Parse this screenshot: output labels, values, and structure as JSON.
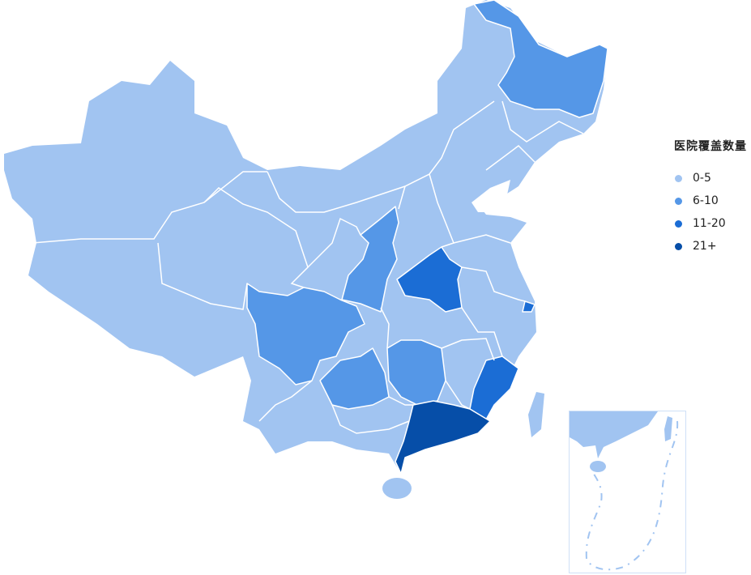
{
  "legend": {
    "title": "医院覆盖数量",
    "items": [
      {
        "label": "0-5",
        "color": "#a1c4f1"
      },
      {
        "label": "6-10",
        "color": "#5597e7"
      },
      {
        "label": "11-20",
        "color": "#1b6dd5"
      },
      {
        "label": "21+",
        "color": "#064ea8"
      }
    ]
  },
  "regions": [
    {
      "id": "heilongjiang",
      "range": "6-10"
    },
    {
      "id": "shaanxi",
      "range": "6-10"
    },
    {
      "id": "sichuan",
      "range": "6-10"
    },
    {
      "id": "guizhou",
      "range": "6-10"
    },
    {
      "id": "hunan",
      "range": "6-10"
    },
    {
      "id": "henan",
      "range": "11-20"
    },
    {
      "id": "fujian",
      "range": "11-20"
    },
    {
      "id": "shanghai",
      "range": "11-20"
    },
    {
      "id": "guangdong",
      "range": "21+"
    }
  ],
  "default_range": "0-5"
}
